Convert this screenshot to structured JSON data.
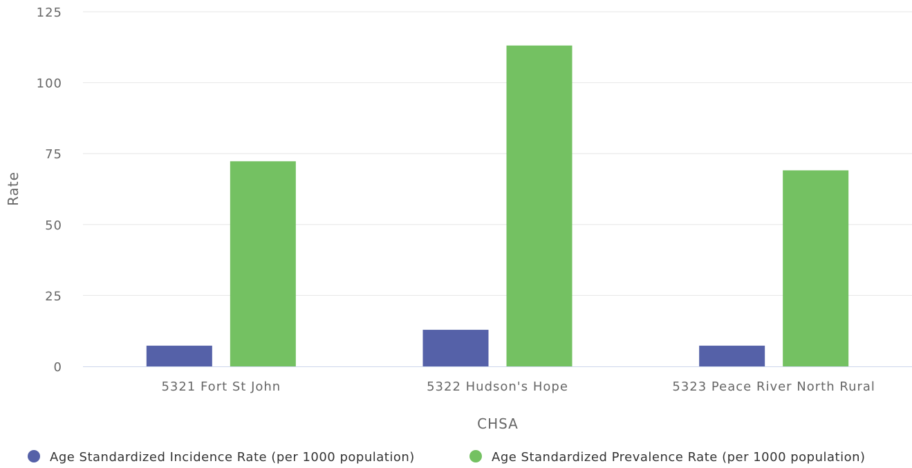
{
  "chart_data": {
    "type": "bar",
    "title": "",
    "xlabel": "CHSA",
    "ylabel": "Rate",
    "ylim": [
      0,
      125
    ],
    "yticks": [
      0,
      25,
      50,
      75,
      100,
      125
    ],
    "grid": true,
    "legend_position": "bottom",
    "categories": [
      "5321 Fort St John",
      "5322 Hudson's Hope",
      "5323 Peace River North Rural"
    ],
    "series": [
      {
        "name": "Age Standardized Incidence Rate (per 1000 population)",
        "color": "#5561a8",
        "values": [
          7.3,
          12.9,
          7.3
        ]
      },
      {
        "name": "Age Standardized Prevalence Rate (per 1000 population)",
        "color": "#74c162",
        "values": [
          72.3,
          113.1,
          69.1
        ]
      }
    ]
  }
}
